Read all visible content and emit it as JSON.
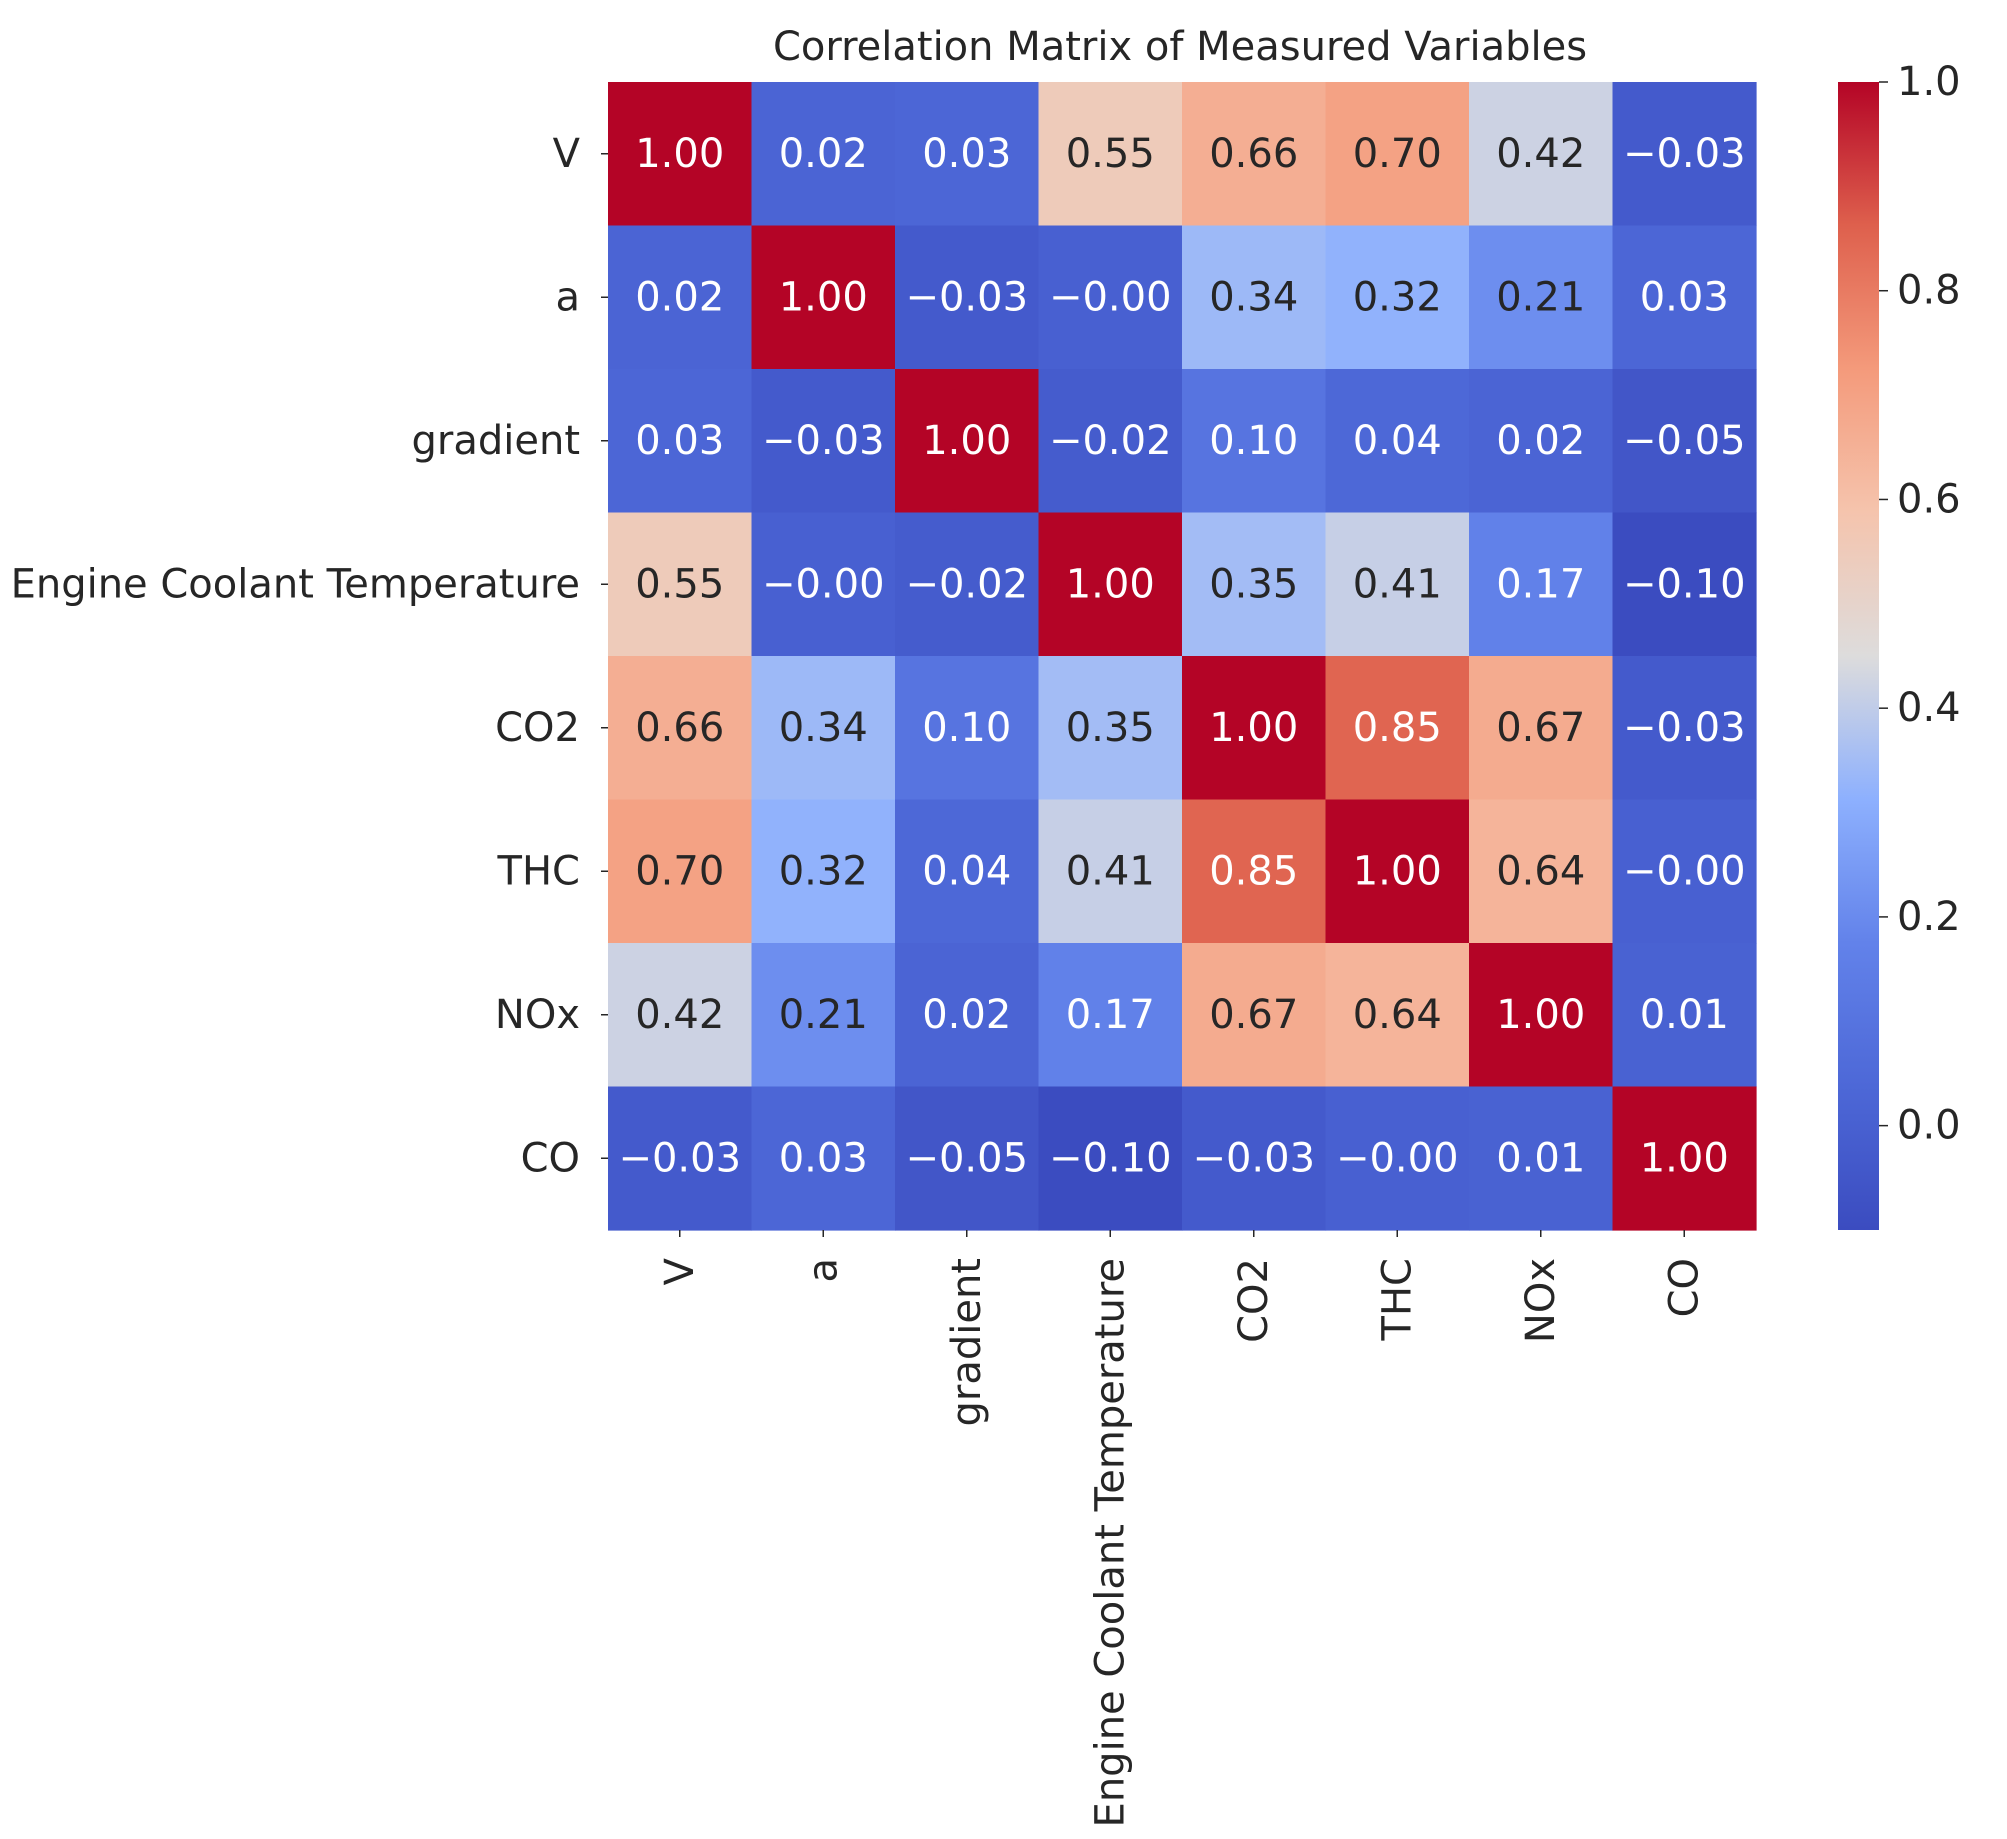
{
  "chart_data": {
    "type": "heatmap",
    "title": "Correlation Matrix of Measured Variables",
    "xlabel": "",
    "ylabel": "",
    "colormap": "coolwarm",
    "vmin": -0.1,
    "vmax": 1.0,
    "x_tick_labels": [
      "V",
      "a",
      "gradient",
      "Engine Coolant Temperature",
      "CO2",
      "THC",
      "NOx",
      "CO"
    ],
    "y_tick_labels": [
      "V",
      "a",
      "gradient",
      "Engine Coolant Temperature",
      "CO2",
      "THC",
      "NOx",
      "CO"
    ],
    "values": [
      [
        1.0,
        0.02,
        0.03,
        0.55,
        0.66,
        0.7,
        0.42,
        -0.03
      ],
      [
        0.02,
        1.0,
        -0.03,
        -0.0,
        0.34,
        0.32,
        0.21,
        0.03
      ],
      [
        0.03,
        -0.03,
        1.0,
        -0.02,
        0.1,
        0.04,
        0.02,
        -0.05
      ],
      [
        0.55,
        -0.0,
        -0.02,
        1.0,
        0.35,
        0.41,
        0.17,
        -0.1
      ],
      [
        0.66,
        0.34,
        0.1,
        0.35,
        1.0,
        0.85,
        0.67,
        -0.03
      ],
      [
        0.7,
        0.32,
        0.04,
        0.41,
        0.85,
        1.0,
        0.64,
        -0.0
      ],
      [
        0.42,
        0.21,
        0.02,
        0.17,
        0.67,
        0.64,
        1.0,
        0.01
      ],
      [
        -0.03,
        0.03,
        -0.05,
        -0.1,
        -0.03,
        -0.0,
        0.01,
        1.0
      ]
    ],
    "annotations": [
      [
        "1.00",
        "0.02",
        "0.03",
        "0.55",
        "0.66",
        "0.70",
        "0.42",
        "−0.03"
      ],
      [
        "0.02",
        "1.00",
        "−0.03",
        "−0.00",
        "0.34",
        "0.32",
        "0.21",
        "0.03"
      ],
      [
        "0.03",
        "−0.03",
        "1.00",
        "−0.02",
        "0.10",
        "0.04",
        "0.02",
        "−0.05"
      ],
      [
        "0.55",
        "−0.00",
        "−0.02",
        "1.00",
        "0.35",
        "0.41",
        "0.17",
        "−0.10"
      ],
      [
        "0.66",
        "0.34",
        "0.10",
        "0.35",
        "1.00",
        "0.85",
        "0.67",
        "−0.03"
      ],
      [
        "0.70",
        "0.32",
        "0.04",
        "0.41",
        "0.85",
        "1.00",
        "0.64",
        "−0.00"
      ],
      [
        "0.42",
        "0.21",
        "0.02",
        "0.17",
        "0.67",
        "0.64",
        "1.00",
        "0.01"
      ],
      [
        "−0.03",
        "0.03",
        "−0.05",
        "−0.10",
        "−0.03",
        "−0.00",
        "0.01",
        "1.00"
      ]
    ],
    "colorbar": {
      "ticks": [
        0.0,
        0.2,
        0.4,
        0.6,
        0.8,
        1.0
      ],
      "tick_labels": [
        "0.0",
        "0.2",
        "0.4",
        "0.6",
        "0.8",
        "1.0"
      ]
    },
    "grid": false
  }
}
